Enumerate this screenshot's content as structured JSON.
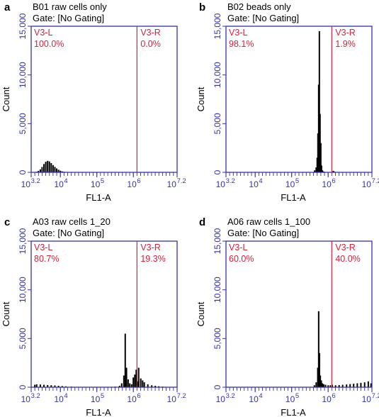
{
  "chart_data": [
    {
      "panel_letter": "a",
      "type": "histogram",
      "title": "B01 raw cells only",
      "gate": "Gate: [No Gating]",
      "xlabel": "FL1-A",
      "ylabel": "Count",
      "x_scale": "log",
      "xlim": [
        1585,
        15849000
      ],
      "x_ticks": [
        {
          "base": "10",
          "exp": "3.2"
        },
        {
          "base": "10",
          "exp": "4"
        },
        {
          "base": "10",
          "exp": "5"
        },
        {
          "base": "10",
          "exp": "6"
        },
        {
          "base": "10",
          "exp": "7.2"
        }
      ],
      "ylim": [
        0,
        15000
      ],
      "y_ticks": [
        "0",
        "5,000",
        "10,000",
        "15,000"
      ],
      "gate_line_x": 1259000,
      "regions": [
        {
          "label": "V3-L",
          "percent": "100.0%"
        },
        {
          "label": "V3-R",
          "percent": "0.0%"
        }
      ],
      "histogram": {
        "x": [
          2240,
          2500,
          2820,
          3160,
          3550,
          3980,
          4470,
          5010,
          5620,
          6310,
          7080,
          7940,
          8910,
          10000,
          11200,
          12600,
          14100,
          15800
        ],
        "y": [
          60,
          150,
          300,
          550,
          850,
          1080,
          1180,
          1120,
          950,
          740,
          560,
          400,
          270,
          170,
          100,
          60,
          30,
          15
        ]
      }
    },
    {
      "panel_letter": "b",
      "type": "histogram",
      "title": "B02 beads only",
      "gate": "Gate: [No Gating]",
      "xlabel": "FL1-A",
      "ylabel": "Count",
      "x_scale": "log",
      "xlim": [
        1585,
        15849000
      ],
      "x_ticks": [
        {
          "base": "10",
          "exp": "3.2"
        },
        {
          "base": "10",
          "exp": "4"
        },
        {
          "base": "10",
          "exp": "5"
        },
        {
          "base": "10",
          "exp": "6"
        },
        {
          "base": "10",
          "exp": "7.2"
        }
      ],
      "ylim": [
        0,
        15000
      ],
      "y_ticks": [
        "0",
        "5,000",
        "10,000",
        "15,000"
      ],
      "gate_line_x": 1259000,
      "regions": [
        {
          "label": "V3-L",
          "percent": "98.1%"
        },
        {
          "label": "V3-R",
          "percent": "1.9%"
        }
      ],
      "histogram": {
        "x": [
          427000,
          470000,
          501000,
          525000,
          550000,
          575000,
          600000,
          630000,
          660000,
          700000,
          760000,
          830000,
          1380000,
          1450000
        ],
        "y": [
          200,
          500,
          1500,
          4000,
          9000,
          14500,
          6000,
          3000,
          700,
          200,
          80,
          40,
          150,
          100
        ]
      }
    },
    {
      "panel_letter": "c",
      "type": "histogram",
      "title": "A03 raw cells 1_20",
      "gate": "Gate: [No Gating]",
      "xlabel": "FL1-A",
      "ylabel": "Count",
      "x_scale": "log",
      "xlim": [
        1585,
        15849000
      ],
      "x_ticks": [
        {
          "base": "10",
          "exp": "3.2"
        },
        {
          "base": "10",
          "exp": "4"
        },
        {
          "base": "10",
          "exp": "5"
        },
        {
          "base": "10",
          "exp": "6"
        },
        {
          "base": "10",
          "exp": "7.2"
        }
      ],
      "ylim": [
        0,
        15000
      ],
      "y_ticks": [
        "0",
        "5,000",
        "10,000",
        "15,000"
      ],
      "gate_line_x": 1259000,
      "regions": [
        {
          "label": "V3-L",
          "percent": "80.7%"
        },
        {
          "label": "V3-R",
          "percent": "19.3%"
        }
      ],
      "histogram": {
        "x": [
          1995,
          2240,
          2820,
          3550,
          4470,
          5620,
          7080,
          8910,
          11200,
          14100,
          19950,
          31600,
          50100,
          79400,
          126000,
          200000,
          320000,
          420000,
          480000,
          550000,
          600000,
          650000,
          720000,
          800000,
          900000,
          1000000,
          1100000,
          1200000,
          1300000,
          1400000,
          1600000,
          1800000,
          2000000,
          2500000,
          3200000,
          4000000,
          5000000,
          6300000
        ],
        "y": [
          250,
          300,
          280,
          250,
          220,
          200,
          180,
          150,
          120,
          90,
          60,
          40,
          30,
          30,
          30,
          40,
          60,
          150,
          400,
          1200,
          5500,
          2000,
          800,
          400,
          300,
          1000,
          1300,
          1800,
          600,
          2000,
          900,
          700,
          500,
          300,
          200,
          150,
          100,
          60
        ]
      }
    },
    {
      "panel_letter": "d",
      "type": "histogram",
      "title": "A06 raw cells 1_100",
      "gate": "Gate: [No Gating]",
      "xlabel": "FL1-A",
      "ylabel": "Count",
      "x_scale": "log",
      "xlim": [
        1585,
        15849000
      ],
      "x_ticks": [
        {
          "base": "10",
          "exp": "3.2"
        },
        {
          "base": "10",
          "exp": "4"
        },
        {
          "base": "10",
          "exp": "5"
        },
        {
          "base": "10",
          "exp": "6"
        },
        {
          "base": "10",
          "exp": "7.2"
        }
      ],
      "ylim": [
        0,
        15000
      ],
      "y_ticks": [
        "0",
        "5,000",
        "10,000",
        "15,000"
      ],
      "gate_line_x": 1259000,
      "regions": [
        {
          "label": "V3-L",
          "percent": "60.0%"
        },
        {
          "label": "V3-R",
          "percent": "40.0%"
        }
      ],
      "histogram": {
        "x": [
          420000,
          470000,
          520000,
          550000,
          580000,
          610000,
          650000,
          700000,
          760000,
          850000,
          1000000,
          1150000,
          1300000,
          1600000,
          2000000,
          2500000,
          3200000,
          4000000,
          5000000,
          6300000,
          7900000,
          10000000,
          12600000,
          15000000
        ],
        "y": [
          200,
          500,
          2000,
          7800,
          3500,
          1200,
          700,
          400,
          300,
          250,
          200,
          200,
          250,
          200,
          220,
          250,
          280,
          320,
          360,
          400,
          450,
          500,
          600,
          400
        ]
      }
    }
  ],
  "colors": {
    "frame": "#3333aa",
    "axis_text": "#3333aa",
    "gate": "#d6203a",
    "bars": "#000000",
    "text": "#000000"
  }
}
